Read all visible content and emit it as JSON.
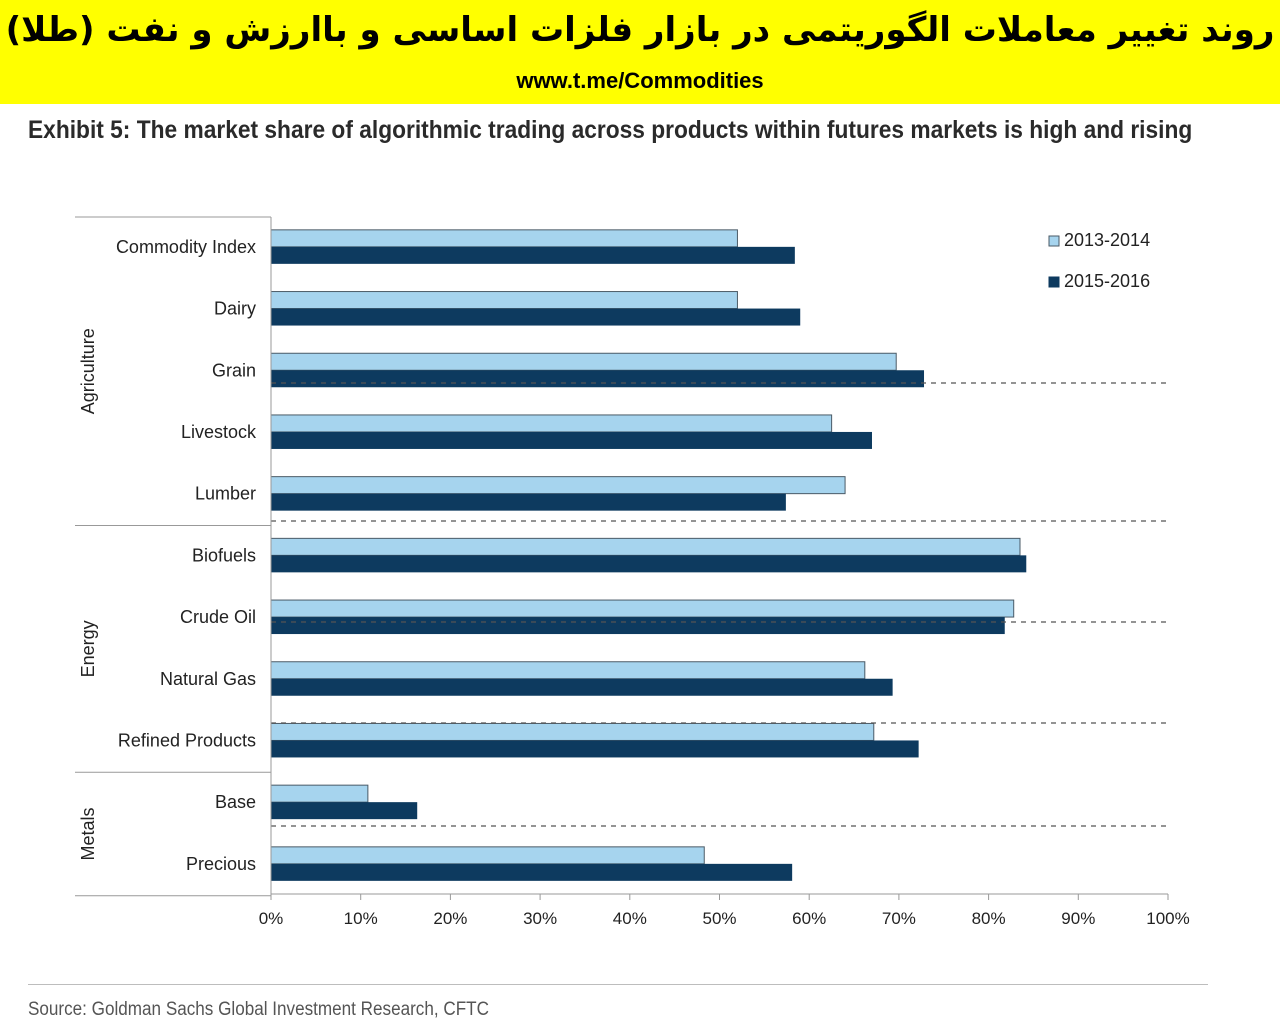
{
  "banner": {
    "title": "روند تغییر معاملات الگوریتمی در بازار فلزات اساسی و باارزش و نفت (طلا)",
    "url": "www.t.me/Commodities"
  },
  "exhibit_title": "Exhibit 5: The market share of algorithmic trading across products within futures markets is high and rising",
  "source": "Source: Goldman Sachs Global Investment Research, CFTC",
  "colors": {
    "series_2013_2014": "#a6d4ee",
    "series_2015_2016": "#0d3a5f",
    "axis": "#999999",
    "dash": "#555555"
  },
  "chart_data": {
    "type": "bar",
    "orientation": "horizontal",
    "title": "Exhibit 5: The market share of algorithmic trading across products within futures markets is high and rising",
    "categories": [
      "Commodity Index",
      "Dairy",
      "Grain",
      "Livestock",
      "Lumber",
      "Biofuels",
      "Crude Oil",
      "Natural Gas",
      "Refined Products",
      "Base",
      "Precious"
    ],
    "groups": [
      {
        "name": "Agriculture",
        "categories": [
          "Commodity Index",
          "Dairy",
          "Grain",
          "Livestock",
          "Lumber"
        ]
      },
      {
        "name": "Energy",
        "categories": [
          "Biofuels",
          "Crude Oil",
          "Natural Gas",
          "Refined Products"
        ]
      },
      {
        "name": "Metals",
        "categories": [
          "Base",
          "Precious"
        ]
      }
    ],
    "series": [
      {
        "name": "2013-2014",
        "color": "#a6d4ee",
        "values": [
          52,
          52,
          69.7,
          62.5,
          64,
          83.5,
          82.8,
          66.2,
          67.2,
          10.8,
          48.3
        ]
      },
      {
        "name": "2015-2016",
        "color": "#0d3a5f",
        "values": [
          58.4,
          59,
          72.8,
          67,
          57.4,
          84.2,
          81.8,
          69.3,
          72.2,
          16.3,
          58.1
        ]
      }
    ],
    "x_ticks": [
      "0%",
      "10%",
      "20%",
      "30%",
      "40%",
      "50%",
      "60%",
      "70%",
      "80%",
      "90%",
      "100%"
    ],
    "xlim": [
      0,
      100
    ],
    "legend": "top-right",
    "grid": false
  }
}
